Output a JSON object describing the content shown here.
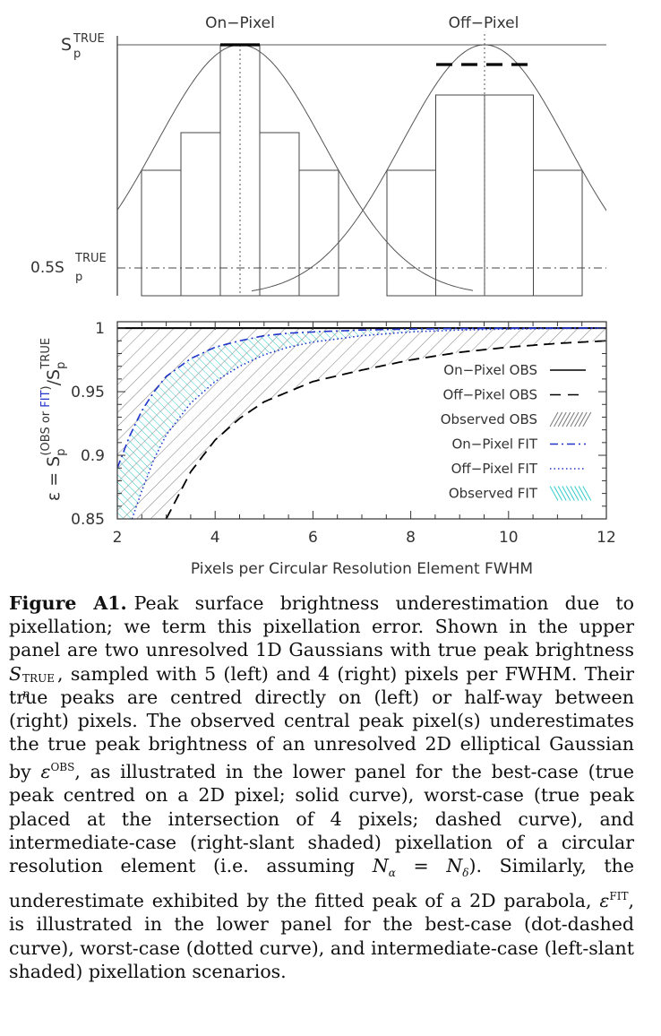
{
  "figure": {
    "top_panel": {
      "labels": {
        "left_title": "On−Pixel",
        "right_title": "Off−Pixel",
        "ytick_top_base": "S",
        "ytick_top_sup": "TRUE",
        "ytick_top_sub": "p",
        "ytick_half_base": "0.5S",
        "ytick_half_sup": "TRUE",
        "ytick_half_sub": "p"
      },
      "left_profile": {
        "pixels_per_fwhm": 5,
        "peak_position": "centred on pixel",
        "bar_values": [
          0.5,
          0.65,
          1.0,
          0.65,
          0.5
        ]
      },
      "right_profile": {
        "pixels_per_fwhm": 4,
        "peak_position": "half-way between pixels",
        "bar_values": [
          0.5,
          0.8,
          0.8,
          0.5
        ]
      }
    },
    "chart_data": {
      "type": "line",
      "xlabel": "Pixels per Circular Resolution Element FWHM",
      "ylabel_parts": {
        "epsilon": "ε",
        "equals": "=",
        "S": "S",
        "sub_p": "p",
        "sup_open": "(OBS or ",
        "sup_fit": "FIT",
        "sup_close": ")",
        "slash": "/S",
        "sub_p2": "p",
        "sup_true": "TRUE"
      },
      "xlim": [
        2,
        12
      ],
      "ylim": [
        0.85,
        1.005
      ],
      "xticks": [
        "2",
        "4",
        "6",
        "8",
        "10",
        "12"
      ],
      "yticks": [
        "0.85",
        "0.9",
        "0.95",
        "1"
      ],
      "legend_position": "right",
      "series": [
        {
          "name": "On−Pixel OBS",
          "style": "solid",
          "color": "#000000",
          "x": [
            2,
            4,
            6,
            8,
            10,
            12
          ],
          "y": [
            1.0,
            1.0,
            1.0,
            1.0,
            1.0,
            1.0
          ]
        },
        {
          "name": "Off−Pixel OBS",
          "style": "dashed",
          "color": "#000000",
          "x": [
            3.0,
            3.5,
            4.0,
            4.5,
            5.0,
            6.0,
            7.0,
            8.0,
            9.0,
            10.0,
            11.0,
            12.0
          ],
          "y": [
            0.85,
            0.887,
            0.912,
            0.929,
            0.942,
            0.958,
            0.967,
            0.975,
            0.981,
            0.985,
            0.988,
            0.99
          ]
        },
        {
          "name": "Observed OBS",
          "style": "right-slant hatch",
          "color": "#777777"
        },
        {
          "name": "On−Pixel FIT",
          "style": "dash-dot",
          "color": "#2233cc",
          "x": [
            2.0,
            2.25,
            2.5,
            2.75,
            3.0,
            3.5,
            4.0,
            4.5,
            5.0,
            5.5,
            6.0,
            7.0,
            8.0,
            9.0,
            10.0,
            11.0,
            12.0
          ],
          "y": [
            0.89,
            0.915,
            0.935,
            0.95,
            0.962,
            0.976,
            0.985,
            0.99,
            0.994,
            0.996,
            0.997,
            0.9985,
            0.9993,
            0.9997,
            0.9999,
            1.0,
            1.0
          ]
        },
        {
          "name": "Off−Pixel FIT",
          "style": "dotted",
          "color": "#2233cc",
          "x": [
            2.3,
            2.5,
            2.75,
            3.0,
            3.5,
            4.0,
            4.5,
            5.0,
            5.5,
            6.0,
            7.0,
            8.0,
            9.0,
            10.0,
            11.0,
            12.0
          ],
          "y": [
            0.85,
            0.872,
            0.897,
            0.916,
            0.941,
            0.958,
            0.97,
            0.979,
            0.985,
            0.989,
            0.994,
            0.997,
            0.9985,
            0.9993,
            0.9997,
            1.0
          ]
        },
        {
          "name": "Observed FIT",
          "style": "left-slant hatch",
          "color": "#33cccc"
        }
      ]
    }
  },
  "caption": {
    "label": "Figure A1.",
    "p1": "Peak surface brightness underestimation due to pixellation; we term this pixellation error. Shown in the upper panel are two unresolved 1D Gaussians with true peak brightness ",
    "m1": "S",
    "m1_sub": "p",
    "m1_sup": "TRUE",
    "p2": ", sampled with 5 (left) and 4 (right) pixels per FWHM. Their true peaks are centred directly on (left) or half-way between (right) pixels. The observed central peak pixel(s) underestimates the true peak brightness of an unresolved 2D elliptical Gaussian by ",
    "m2": "ε",
    "m2_sup": "OBS",
    "p3": ", as illustrated in the lower panel for the best-case (true peak centred on a 2D pixel; solid curve), worst-case (true peak placed at the intersection of 4 pixels; dashed curve), and intermediate-case (right-slant shaded) pixellation of a circular resolution element (i.e. assuming ",
    "m3a": "N",
    "m3a_sub": "α",
    "m3_eq": " = ",
    "m3b": "N",
    "m3b_sub": "δ",
    "p4": "). Similarly, the underestimate exhibited by the fitted peak of a 2D parabola, ",
    "m4": "ε",
    "m4_sup": "FIT",
    "p5": ", is illustrated in the lower panel for the best-case (dot-dashed curve), worst-case (dotted curve), and intermediate-case (left-slant shaded) pixellation scenarios."
  }
}
